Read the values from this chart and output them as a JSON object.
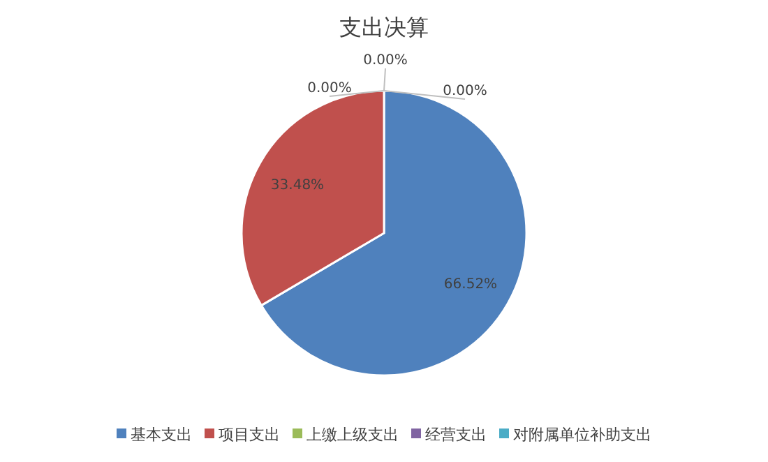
{
  "chart_data": {
    "type": "pie",
    "title": "支出决算",
    "categories": [
      "基本支出",
      "项目支出",
      "上缴上级支出",
      "经营支出",
      "对附属单位补助支出"
    ],
    "values": [
      66.52,
      33.48,
      0,
      0,
      0
    ],
    "colors": [
      "#4f81bd",
      "#c0504d",
      "#9bbb59",
      "#8064a2",
      "#4bacc6"
    ],
    "value_labels": [
      "66.52%",
      "33.48%",
      "0.00%",
      "0.00%",
      "0.00%"
    ],
    "legend": "bottom"
  }
}
